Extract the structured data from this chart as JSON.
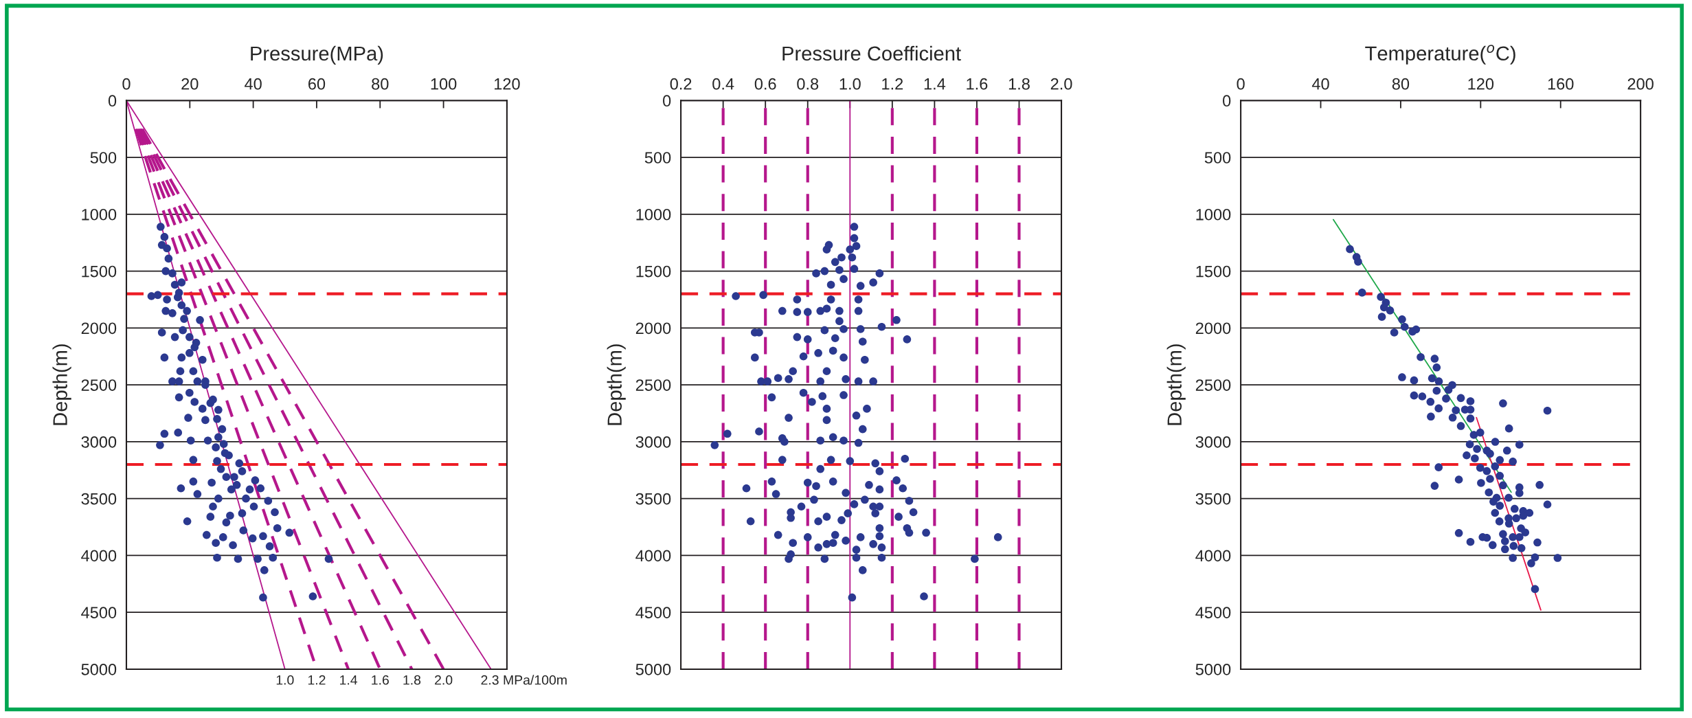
{
  "chart_data": [
    {
      "type": "scatter",
      "title": "Pressure(MPa)",
      "ylabel": "Depth(m)",
      "xlim": [
        0,
        120
      ],
      "xticks": [
        0,
        20,
        40,
        60,
        80,
        100,
        120
      ],
      "ylim": [
        5000,
        0
      ],
      "yticks": [
        0,
        500,
        1000,
        1500,
        2000,
        2500,
        3000,
        3500,
        4000,
        4500,
        5000
      ],
      "grid": "y",
      "series": [
        {
          "type": "scatter",
          "marker": "circle",
          "color": "#2b3990",
          "x": [
            10.8,
            12.0,
            11.2,
            12.8,
            13.3,
            12.4,
            14.5,
            15.3,
            17.4,
            7.9,
            9.9,
            12.8,
            16.2,
            12.4,
            14.5,
            17.4,
            23.2,
            18.2,
            11.2,
            15.3,
            17.8,
            19.9,
            22.0,
            12.0,
            17.4,
            19.9,
            24.0,
            17.0,
            14.5,
            16.6,
            21.1,
            22.4,
            24.9,
            19.9,
            16.6,
            21.5,
            24.0,
            26.5,
            29.0,
            19.5,
            24.9,
            28.6,
            12.0,
            16.3,
            10.6,
            20.3,
            25.7,
            30.2,
            28.2,
            30.7,
            32.3,
            21.1,
            28.6,
            35.6,
            29.8,
            31.5,
            36.5,
            17.2,
            21.1,
            22.4,
            26.9,
            33.1,
            38.9,
            42.3,
            40.6,
            29.0,
            37.7,
            44.7,
            27.3,
            40.2,
            46.8,
            26.5,
            32.7,
            36.5,
            19.2,
            31.5,
            25.3,
            28.2,
            30.5,
            33.6,
            36.9,
            39.8,
            43.1,
            47.6,
            51.4,
            45.2,
            28.6,
            35.2,
            41.4,
            46.2,
            63.8,
            43.5,
            43.1,
            58.8,
            16.6,
            19.1,
            21.5,
            24.9,
            27.3,
            29.0,
            31.1,
            34.0,
            34.8
          ],
          "values": [
            1110,
            1200,
            1270,
            1300,
            1390,
            1500,
            1520,
            1620,
            1600,
            1720,
            1710,
            1750,
            1730,
            1850,
            1870,
            1800,
            1930,
            1920,
            2040,
            2080,
            2020,
            2080,
            2130,
            2260,
            2260,
            2220,
            2280,
            2380,
            2470,
            2470,
            2380,
            2470,
            2470,
            2570,
            2610,
            2650,
            2710,
            2660,
            2720,
            2790,
            2810,
            2800,
            2930,
            2920,
            3030,
            2990,
            2990,
            2890,
            3050,
            3020,
            3120,
            3160,
            3170,
            3190,
            3240,
            3310,
            3260,
            3410,
            3350,
            3460,
            3360,
            3420,
            3420,
            3410,
            3340,
            3500,
            3500,
            3520,
            3570,
            3570,
            3620,
            3660,
            3650,
            3630,
            3700,
            3710,
            3820,
            3890,
            3840,
            3910,
            3780,
            3850,
            3830,
            3760,
            3800,
            3920,
            4020,
            4030,
            4030,
            4020,
            4030,
            4130,
            4370,
            4360,
            1690,
            1850,
            2170,
            2500,
            2630,
            2960,
            3100,
            3310,
            3380
          ]
        },
        {
          "type": "line",
          "color": "#b5178c",
          "line_style": "solid",
          "x": [
            0,
            50
          ],
          "values": [
            0,
            5000
          ]
        },
        {
          "type": "line",
          "color": "#b5178c",
          "line_style": "dashed",
          "x": [
            3.0,
            60
          ],
          "values": [
            250,
            5000
          ]
        },
        {
          "type": "line",
          "color": "#b5178c",
          "line_style": "dashed",
          "x": [
            3.5,
            70
          ],
          "values": [
            250,
            5000
          ]
        },
        {
          "type": "line",
          "color": "#b5178c",
          "line_style": "dashed",
          "x": [
            4.0,
            80
          ],
          "values": [
            250,
            5000
          ]
        },
        {
          "type": "line",
          "color": "#b5178c",
          "line_style": "dashed",
          "x": [
            4.5,
            90
          ],
          "values": [
            250,
            5000
          ]
        },
        {
          "type": "line",
          "color": "#b5178c",
          "line_style": "dashed",
          "x": [
            5.0,
            100
          ],
          "values": [
            250,
            5000
          ]
        },
        {
          "type": "line",
          "color": "#b5178c",
          "line_style": "solid",
          "x": [
            0,
            115
          ],
          "values": [
            0,
            5000
          ]
        }
      ],
      "ref_lines": [
        {
          "axis": "y",
          "value": 1700,
          "color": "#ee1c25",
          "line_style": "dashed"
        },
        {
          "axis": "y",
          "value": 3200,
          "color": "#ee1c25",
          "line_style": "dashed"
        }
      ],
      "annotations": [
        {
          "text": "1.0",
          "x": 50,
          "y": 5000
        },
        {
          "text": "1.2",
          "x": 60,
          "y": 5000
        },
        {
          "text": "1.4",
          "x": 70,
          "y": 5000
        },
        {
          "text": "1.6",
          "x": 80,
          "y": 5000
        },
        {
          "text": "1.8",
          "x": 90,
          "y": 5000
        },
        {
          "text": "2.0",
          "x": 100,
          "y": 5000
        },
        {
          "text": "2.3 MPa/100m",
          "x": 115,
          "y": 5000
        }
      ]
    },
    {
      "type": "scatter",
      "title": "Pressure Coefficient",
      "ylabel": "Depth(m)",
      "xlim": [
        0.2,
        2.0
      ],
      "xticks": [
        0.2,
        0.4,
        0.6,
        0.8,
        {
          "value": 1.0,
          "label": "1.0"
        },
        1.2,
        1.4,
        1.6,
        1.8,
        {
          "value": 2.0,
          "label": "2.0"
        }
      ],
      "ylim": [
        5000,
        0
      ],
      "yticks": [
        0,
        500,
        1000,
        1500,
        2000,
        2500,
        3000,
        3500,
        4000,
        4500,
        5000
      ],
      "grid": "y",
      "series": [
        {
          "type": "scatter",
          "marker": "circle",
          "color": "#2b3990",
          "x": [
            1.02,
            1.02,
            1.03,
            0.9,
            0.89,
            1.0,
            0.96,
            0.93,
            1.01,
            0.84,
            0.88,
            0.95,
            1.02,
            1.14,
            1.11,
            1.05,
            0.91,
            0.97,
            0.46,
            0.59,
            0.75,
            0.91,
            1.04,
            0.68,
            0.75,
            0.8,
            0.86,
            0.89,
            0.95,
            1.04,
            1.22,
            0.95,
            0.55,
            0.57,
            0.75,
            0.8,
            0.88,
            0.97,
            1.05,
            1.15,
            1.27,
            0.93,
            1.06,
            0.55,
            0.78,
            0.85,
            0.92,
            0.97,
            1.07,
            0.73,
            0.58,
            0.61,
            0.66,
            0.71,
            0.86,
            0.89,
            0.98,
            1.04,
            1.11,
            0.63,
            0.78,
            0.82,
            0.87,
            0.97,
            1.08,
            0.89,
            0.71,
            0.89,
            1.03,
            1.06,
            0.42,
            0.57,
            0.68,
            0.69,
            0.36,
            0.86,
            0.92,
            0.97,
            1.04,
            0.68,
            0.91,
            1.0,
            1.12,
            1.26,
            0.86,
            1.14,
            0.63,
            0.51,
            0.65,
            0.8,
            0.84,
            0.92,
            0.98,
            1.09,
            1.14,
            1.22,
            1.25,
            0.83,
            1.02,
            1.07,
            1.11,
            1.14,
            1.28,
            0.72,
            0.72,
            0.77,
            0.89,
            0.99,
            1.12,
            1.23,
            1.3,
            0.53,
            0.85,
            0.96,
            1.14,
            1.27,
            1.28,
            1.36,
            0.66,
            0.8,
            0.93,
            0.98,
            1.05,
            1.14,
            0.73,
            0.85,
            0.89,
            0.92,
            1.11,
            1.15,
            1.03,
            0.72,
            0.71,
            0.88,
            1.03,
            1.15,
            1.59,
            1.06,
            1.01,
            1.35,
            1.7
          ],
          "values": [
            1110,
            1210,
            1280,
            1270,
            1310,
            1310,
            1380,
            1420,
            1380,
            1520,
            1500,
            1490,
            1480,
            1520,
            1600,
            1630,
            1620,
            1570,
            1720,
            1710,
            1750,
            1750,
            1750,
            1850,
            1860,
            1860,
            1850,
            1830,
            1850,
            1850,
            1930,
            1940,
            2040,
            2040,
            2080,
            2100,
            2020,
            2010,
            2010,
            1990,
            2100,
            2090,
            2120,
            2260,
            2250,
            2220,
            2200,
            2260,
            2280,
            2380,
            2470,
            2470,
            2440,
            2450,
            2470,
            2380,
            2450,
            2470,
            2470,
            2610,
            2570,
            2650,
            2600,
            2590,
            2710,
            2710,
            2790,
            2810,
            2770,
            2890,
            2930,
            2910,
            2970,
            3000,
            3030,
            2990,
            2960,
            2990,
            3010,
            3160,
            3160,
            3170,
            3190,
            3150,
            3240,
            3260,
            3350,
            3410,
            3460,
            3360,
            3390,
            3350,
            3450,
            3380,
            3420,
            3340,
            3410,
            3510,
            3550,
            3510,
            3570,
            3570,
            3520,
            3620,
            3670,
            3570,
            3660,
            3630,
            3630,
            3660,
            3620,
            3700,
            3700,
            3690,
            3760,
            3760,
            3800,
            3800,
            3820,
            3840,
            3820,
            3870,
            3840,
            3830,
            3890,
            3930,
            3900,
            3890,
            3900,
            3930,
            3950,
            3990,
            4030,
            4030,
            4020,
            4020,
            4030,
            4130,
            4370,
            4360,
            3840
          ]
        }
      ],
      "ref_lines": [
        {
          "axis": "y",
          "value": 1700,
          "color": "#ee1c25",
          "line_style": "dashed"
        },
        {
          "axis": "y",
          "value": 3200,
          "color": "#ee1c25",
          "line_style": "dashed"
        },
        {
          "axis": "x",
          "value": 0.4,
          "color": "#b5178c",
          "line_style": "dashed"
        },
        {
          "axis": "x",
          "value": 0.6,
          "color": "#b5178c",
          "line_style": "dashed"
        },
        {
          "axis": "x",
          "value": 0.8,
          "color": "#b5178c",
          "line_style": "dashed"
        },
        {
          "axis": "x",
          "value": 1.0,
          "color": "#b5178c",
          "line_style": "solid"
        },
        {
          "axis": "x",
          "value": 1.2,
          "color": "#b5178c",
          "line_style": "dashed"
        },
        {
          "axis": "x",
          "value": 1.4,
          "color": "#b5178c",
          "line_style": "dashed"
        },
        {
          "axis": "x",
          "value": 1.6,
          "color": "#b5178c",
          "line_style": "dashed"
        },
        {
          "axis": "x",
          "value": 1.8,
          "color": "#b5178c",
          "line_style": "dashed"
        }
      ]
    },
    {
      "type": "scatter",
      "title": "Temperature($^{o}$C)",
      "ylabel": "Depth(m)",
      "xlim": [
        0,
        200
      ],
      "xticks": [
        0,
        40,
        80,
        120,
        160,
        200
      ],
      "ylim": [
        5000,
        0
      ],
      "yticks": [
        0,
        500,
        1000,
        1500,
        2000,
        2500,
        3000,
        3500,
        4000,
        4500,
        5000
      ],
      "grid": "y",
      "series": [
        {
          "type": "scatter",
          "marker": "circle",
          "color": "#2b3990",
          "x": [
            54.6,
            57.9,
            58.7,
            60.7,
            70.1,
            72.6,
            71.7,
            74.7,
            70.6,
            80.7,
            82.0,
            76.8,
            85.9,
            87.7,
            90.0,
            97.0,
            98.0,
            80.7,
            86.7,
            95.7,
            99.1,
            105.8,
            103.9,
            98.0,
            86.7,
            90.8,
            94.9,
            102.7,
            110.1,
            114.9,
            99.0,
            95.1,
            107.6,
            112.2,
            114.9,
            106.0,
            110.1,
            114.9,
            131.2,
            153.4,
            116.6,
            119.8,
            134.2,
            114.6,
            118.2,
            123.1,
            127.3,
            133.2,
            139.4,
            113.0,
            117.1,
            124.7,
            129.6,
            136.1,
            99.0,
            119.8,
            123.1,
            127.2,
            109.1,
            97.0,
            120.2,
            124.7,
            129.6,
            131.2,
            139.4,
            139.4,
            149.5,
            124.1,
            128.0,
            126.4,
            134.0,
            153.4,
            127.2,
            129.6,
            137.0,
            141.3,
            144.4,
            141.3,
            134.0,
            129.4,
            137.8,
            134.2,
            140.2,
            142.3,
            131.2,
            136.1,
            139.4,
            109.1,
            114.9,
            121.0,
            123.1,
            126.0,
            132.2,
            132.2,
            136.5,
            140.4,
            148.4,
            136.1,
            147.2,
            145.3,
            158.5,
            147.2
          ],
          "values": [
            1307,
            1376,
            1417,
            1689,
            1727,
            1777,
            1819,
            1846,
            1902,
            1924,
            1990,
            2040,
            2032,
            2013,
            2256,
            2270,
            2347,
            2433,
            2461,
            2442,
            2469,
            2502,
            2544,
            2552,
            2594,
            2602,
            2649,
            2621,
            2616,
            2644,
            2707,
            2779,
            2724,
            2718,
            2718,
            2788,
            2862,
            2796,
            2663,
            2727,
            2940,
            2920,
            2884,
            3023,
            3064,
            3078,
            3001,
            3078,
            3026,
            3120,
            3147,
            3106,
            3161,
            3175,
            3225,
            3230,
            3258,
            3217,
            3333,
            3388,
            3363,
            3327,
            3300,
            3383,
            3402,
            3452,
            3380,
            3446,
            3493,
            3527,
            3493,
            3552,
            3626,
            3563,
            3590,
            3610,
            3626,
            3651,
            3673,
            3701,
            3673,
            3720,
            3762,
            3798,
            3812,
            3839,
            3839,
            3803,
            3881,
            3839,
            3845,
            3909,
            3875,
            3945,
            3917,
            3936,
            3886,
            4022,
            4017,
            4069,
            4022,
            4296
          ]
        },
        {
          "type": "line",
          "color": "#1fa84a",
          "line_style": "solid",
          "x": [
            46.3,
            135.3
          ],
          "values": [
            1047,
            3444
          ]
        },
        {
          "type": "line",
          "color": "#e8194a",
          "line_style": "solid",
          "x": [
            117.9,
            150.1
          ],
          "values": [
            2788,
            4480
          ]
        }
      ],
      "ref_lines": [
        {
          "axis": "y",
          "value": 1700,
          "color": "#ee1c25",
          "line_style": "dashed"
        },
        {
          "axis": "y",
          "value": 3200,
          "color": "#ee1c25",
          "line_style": "dashed"
        }
      ]
    }
  ]
}
